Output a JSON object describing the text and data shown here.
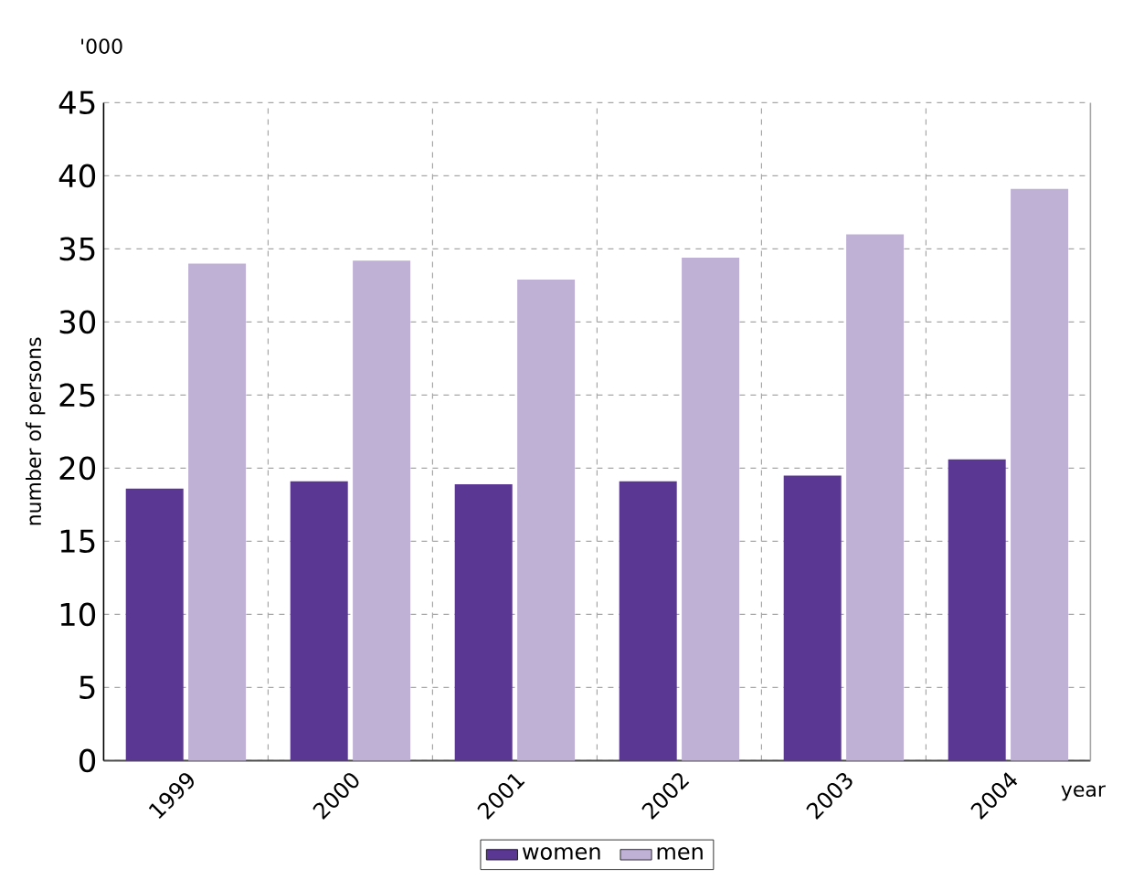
{
  "chart_data": {
    "type": "bar",
    "ylabel": "number of persons",
    "xlabel": "year",
    "annotations": [
      "'000"
    ],
    "categories": [
      "1999",
      "2000",
      "2001",
      "2002",
      "2003",
      "2004"
    ],
    "series": [
      {
        "name": "women",
        "color": "#5b3794",
        "values": [
          18.6,
          19.1,
          18.9,
          19.1,
          19.5,
          20.6
        ]
      },
      {
        "name": "men",
        "color": "#bfb0d6",
        "values": [
          34.0,
          34.2,
          32.9,
          34.4,
          36.0,
          39.1
        ]
      }
    ],
    "ylim": [
      0,
      45
    ],
    "yticks": [
      0,
      5,
      10,
      15,
      20,
      25,
      30,
      35,
      40,
      45
    ],
    "grid": true,
    "legend": "bottom"
  }
}
